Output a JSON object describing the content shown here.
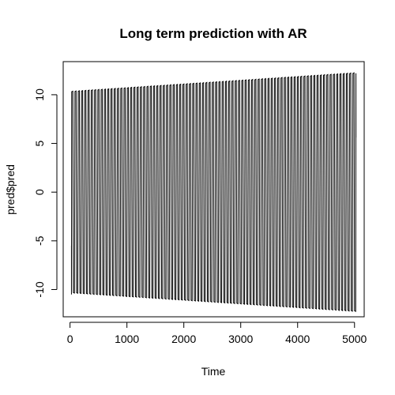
{
  "chart_data": {
    "type": "line",
    "title": "Long term prediction with AR",
    "xlabel": "Time",
    "ylabel": "pred$pred",
    "xlim": [
      -120,
      5170
    ],
    "ylim": [
      -12.8,
      13.4
    ],
    "x_ticks": [
      0,
      1000,
      2000,
      3000,
      4000,
      5000
    ],
    "y_ticks": [
      -10,
      -5,
      0,
      5,
      10
    ],
    "x_tick_labels": [
      "0",
      "1000",
      "2000",
      "3000",
      "4000",
      "5000"
    ],
    "y_tick_labels": [
      "-10",
      "-5",
      "0",
      "5",
      "10"
    ],
    "grid": false,
    "legend": "none",
    "series": [
      {
        "x_start": 25,
        "x_end": 5025,
        "cycles": 87,
        "start_value": -5.5,
        "amplitude_at_start": 10.3,
        "amplitude_at_end": 12.2,
        "end_value": 5.6
      }
    ],
    "colors": {
      "line": "#000000",
      "axes": "#000000",
      "background": "#ffffff"
    }
  }
}
